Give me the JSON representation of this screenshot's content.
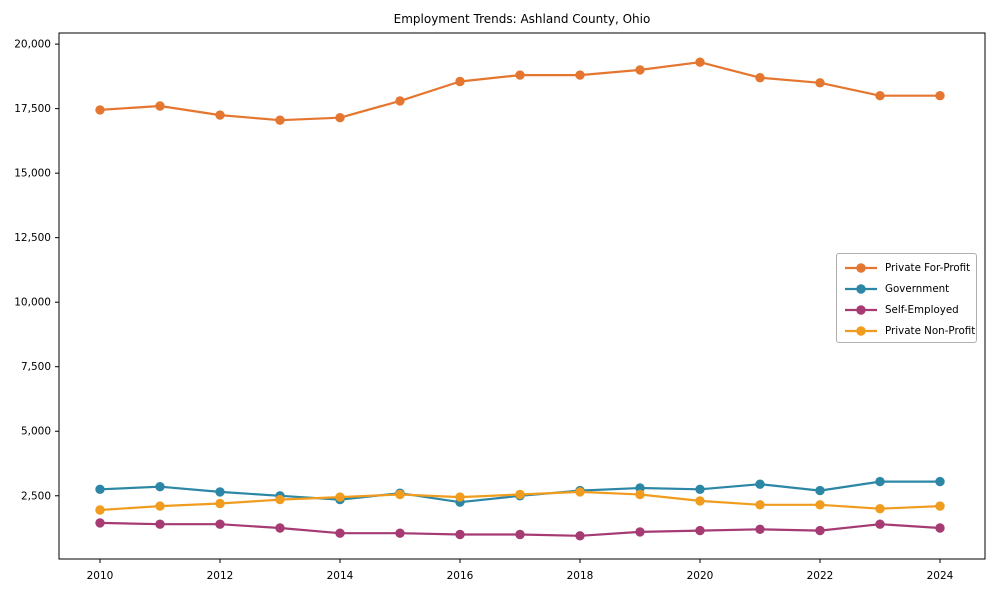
{
  "chart_data": {
    "type": "line",
    "title": "Employment Trends: Ashland County, Ohio",
    "xlabel": "",
    "ylabel": "",
    "grid": false,
    "legend_position": "center right",
    "x": [
      2010,
      2011,
      2012,
      2013,
      2014,
      2015,
      2016,
      2017,
      2018,
      2019,
      2020,
      2021,
      2022,
      2023,
      2024
    ],
    "xticks": [
      2010,
      2012,
      2014,
      2016,
      2018,
      2020,
      2022,
      2024
    ],
    "yticks": [
      2500,
      5000,
      7500,
      10000,
      12500,
      15000,
      17500,
      20000
    ],
    "ylim": [
      50,
      20430
    ],
    "series": [
      {
        "name": "Private For-Profit",
        "color": "#e4762f",
        "values": [
          17450,
          17600,
          17250,
          17050,
          17150,
          17800,
          18550,
          18800,
          18800,
          19000,
          19300,
          18700,
          18500,
          18000,
          18000
        ]
      },
      {
        "name": "Government",
        "color": "#2b87a5",
        "values": [
          2750,
          2850,
          2650,
          2500,
          2350,
          2600,
          2250,
          2500,
          2700,
          2800,
          2750,
          2950,
          2700,
          3050,
          3050
        ]
      },
      {
        "name": "Self-Employed",
        "color": "#a63a72",
        "values": [
          1450,
          1400,
          1400,
          1250,
          1050,
          1050,
          1000,
          1000,
          950,
          1100,
          1150,
          1200,
          1150,
          1400,
          1250
        ]
      },
      {
        "name": "Private Non-Profit",
        "color": "#f09c1e",
        "values": [
          1950,
          2100,
          2200,
          2350,
          2450,
          2550,
          2450,
          2550,
          2650,
          2550,
          2300,
          2150,
          2150,
          2000,
          2100
        ]
      }
    ]
  }
}
